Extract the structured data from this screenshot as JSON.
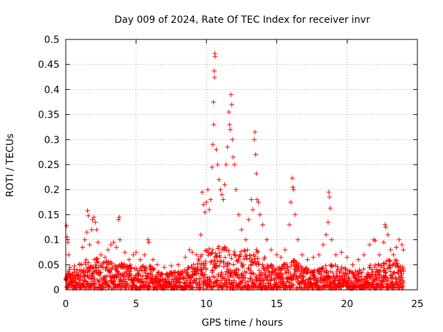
{
  "chart_data": {
    "type": "scatter",
    "title": "Day 009 of 2024, Rate Of TEC Index for receiver invr",
    "xlabel": "GPS time / hours",
    "ylabel": "ROTI / TECUs",
    "xlim": [
      0,
      25
    ],
    "ylim": [
      0,
      0.5
    ],
    "grid": true,
    "marker": "+",
    "color": "#ff0000",
    "x_ticks": [
      {
        "value": 0,
        "label": "0"
      },
      {
        "value": 5,
        "label": "5"
      },
      {
        "value": 10,
        "label": "10"
      },
      {
        "value": 15,
        "label": "15"
      },
      {
        "value": 20,
        "label": "20"
      },
      {
        "value": 25,
        "label": "25"
      }
    ],
    "y_ticks": [
      {
        "value": 0,
        "label": "0"
      },
      {
        "value": 0.05,
        "label": "0.05"
      },
      {
        "value": 0.1,
        "label": "0.1"
      },
      {
        "value": 0.15,
        "label": "0.15"
      },
      {
        "value": 0.2,
        "label": "0.2"
      },
      {
        "value": 0.25,
        "label": "0.25"
      },
      {
        "value": 0.3,
        "label": "0.3"
      },
      {
        "value": 0.35,
        "label": "0.35"
      },
      {
        "value": 0.4,
        "label": "0.4"
      },
      {
        "value": 0.45,
        "label": "0.45"
      },
      {
        "value": 0.5,
        "label": "0.5"
      }
    ],
    "points": [
      [
        0.05,
        0.128
      ],
      [
        0.1,
        0.105
      ],
      [
        0.15,
        0.095
      ],
      [
        0.2,
        0.07
      ],
      [
        0.3,
        0.045
      ],
      [
        0.5,
        0.03
      ],
      [
        0.8,
        0.04
      ],
      [
        1.0,
        0.05
      ],
      [
        1.2,
        0.085
      ],
      [
        1.35,
        0.1
      ],
      [
        1.5,
        0.115
      ],
      [
        1.55,
        0.158
      ],
      [
        1.6,
        0.148
      ],
      [
        1.7,
        0.09
      ],
      [
        1.85,
        0.12
      ],
      [
        1.9,
        0.14
      ],
      [
        2.0,
        0.145
      ],
      [
        2.1,
        0.135
      ],
      [
        2.2,
        0.12
      ],
      [
        2.3,
        0.095
      ],
      [
        2.5,
        0.07
      ],
      [
        2.8,
        0.065
      ],
      [
        3.0,
        0.08
      ],
      [
        3.2,
        0.09
      ],
      [
        3.4,
        0.095
      ],
      [
        3.6,
        0.085
      ],
      [
        3.75,
        0.14
      ],
      [
        3.8,
        0.145
      ],
      [
        3.85,
        0.1
      ],
      [
        4.2,
        0.075
      ],
      [
        4.5,
        0.06
      ],
      [
        4.8,
        0.07
      ],
      [
        5.0,
        0.075
      ],
      [
        5.3,
        0.06
      ],
      [
        5.6,
        0.07
      ],
      [
        5.85,
        0.1
      ],
      [
        5.9,
        0.095
      ],
      [
        6.2,
        0.06
      ],
      [
        6.5,
        0.05
      ],
      [
        7.0,
        0.045
      ],
      [
        7.5,
        0.048
      ],
      [
        8.0,
        0.05
      ],
      [
        8.5,
        0.065
      ],
      [
        8.8,
        0.08
      ],
      [
        9.0,
        0.075
      ],
      [
        9.3,
        0.07
      ],
      [
        9.6,
        0.11
      ],
      [
        9.7,
        0.195
      ],
      [
        9.8,
        0.17
      ],
      [
        9.9,
        0.155
      ],
      [
        10.0,
        0.175
      ],
      [
        10.1,
        0.2
      ],
      [
        10.2,
        0.16
      ],
      [
        10.3,
        0.18
      ],
      [
        10.4,
        0.245
      ],
      [
        10.45,
        0.29
      ],
      [
        10.5,
        0.375
      ],
      [
        10.52,
        0.33
      ],
      [
        10.55,
        0.437
      ],
      [
        10.58,
        0.424
      ],
      [
        10.6,
        0.472
      ],
      [
        10.62,
        0.466
      ],
      [
        10.7,
        0.28
      ],
      [
        10.8,
        0.25
      ],
      [
        10.9,
        0.22
      ],
      [
        11.0,
        0.2
      ],
      [
        11.1,
        0.19
      ],
      [
        11.2,
        0.18
      ],
      [
        11.3,
        0.21
      ],
      [
        11.4,
        0.25
      ],
      [
        11.5,
        0.285
      ],
      [
        11.6,
        0.355
      ],
      [
        11.65,
        0.33
      ],
      [
        11.7,
        0.32
      ],
      [
        11.75,
        0.39
      ],
      [
        11.8,
        0.37
      ],
      [
        11.85,
        0.3
      ],
      [
        11.9,
        0.265
      ],
      [
        12.0,
        0.25
      ],
      [
        12.1,
        0.2
      ],
      [
        12.3,
        0.15
      ],
      [
        12.5,
        0.12
      ],
      [
        12.8,
        0.1
      ],
      [
        13.0,
        0.14
      ],
      [
        13.2,
        0.18
      ],
      [
        13.3,
        0.16
      ],
      [
        13.4,
        0.3
      ],
      [
        13.45,
        0.315
      ],
      [
        13.5,
        0.27
      ],
      [
        13.55,
        0.232
      ],
      [
        13.6,
        0.18
      ],
      [
        13.7,
        0.175
      ],
      [
        13.8,
        0.15
      ],
      [
        14.0,
        0.13
      ],
      [
        14.3,
        0.1
      ],
      [
        14.6,
        0.08
      ],
      [
        15.0,
        0.07
      ],
      [
        15.3,
        0.065
      ],
      [
        15.6,
        0.08
      ],
      [
        15.9,
        0.13
      ],
      [
        16.0,
        0.175
      ],
      [
        16.1,
        0.223
      ],
      [
        16.15,
        0.205
      ],
      [
        16.2,
        0.2
      ],
      [
        16.3,
        0.15
      ],
      [
        16.5,
        0.1
      ],
      [
        16.8,
        0.07
      ],
      [
        17.2,
        0.06
      ],
      [
        17.6,
        0.065
      ],
      [
        18.0,
        0.07
      ],
      [
        18.3,
        0.09
      ],
      [
        18.5,
        0.11
      ],
      [
        18.65,
        0.135
      ],
      [
        18.7,
        0.195
      ],
      [
        18.75,
        0.185
      ],
      [
        18.8,
        0.163
      ],
      [
        18.9,
        0.1
      ],
      [
        19.2,
        0.07
      ],
      [
        19.6,
        0.075
      ],
      [
        20.0,
        0.065
      ],
      [
        20.4,
        0.05
      ],
      [
        20.8,
        0.06
      ],
      [
        21.2,
        0.07
      ],
      [
        21.6,
        0.09
      ],
      [
        21.9,
        0.1
      ],
      [
        22.0,
        0.098
      ],
      [
        22.3,
        0.07
      ],
      [
        22.6,
        0.095
      ],
      [
        22.7,
        0.13
      ],
      [
        22.75,
        0.125
      ],
      [
        22.9,
        0.11
      ],
      [
        23.1,
        0.08
      ],
      [
        23.3,
        0.07
      ],
      [
        23.5,
        0.085
      ],
      [
        23.7,
        0.1
      ],
      [
        23.9,
        0.09
      ],
      [
        24.0,
        0.08
      ]
    ],
    "noise_floor": {
      "x_start": 0.0,
      "x_end": 24.0,
      "step": 0.04,
      "profile": [
        [
          0,
          0.035
        ],
        [
          1.5,
          0.06
        ],
        [
          2.5,
          0.06
        ],
        [
          4,
          0.05
        ],
        [
          6,
          0.045
        ],
        [
          7,
          0.03
        ],
        [
          9,
          0.045
        ],
        [
          10,
          0.08
        ],
        [
          11,
          0.09
        ],
        [
          12,
          0.075
        ],
        [
          13.5,
          0.08
        ],
        [
          15,
          0.04
        ],
        [
          16,
          0.06
        ],
        [
          17.5,
          0.035
        ],
        [
          19,
          0.05
        ],
        [
          20.5,
          0.035
        ],
        [
          22,
          0.05
        ],
        [
          23.5,
          0.06
        ],
        [
          24,
          0.04
        ]
      ]
    }
  }
}
